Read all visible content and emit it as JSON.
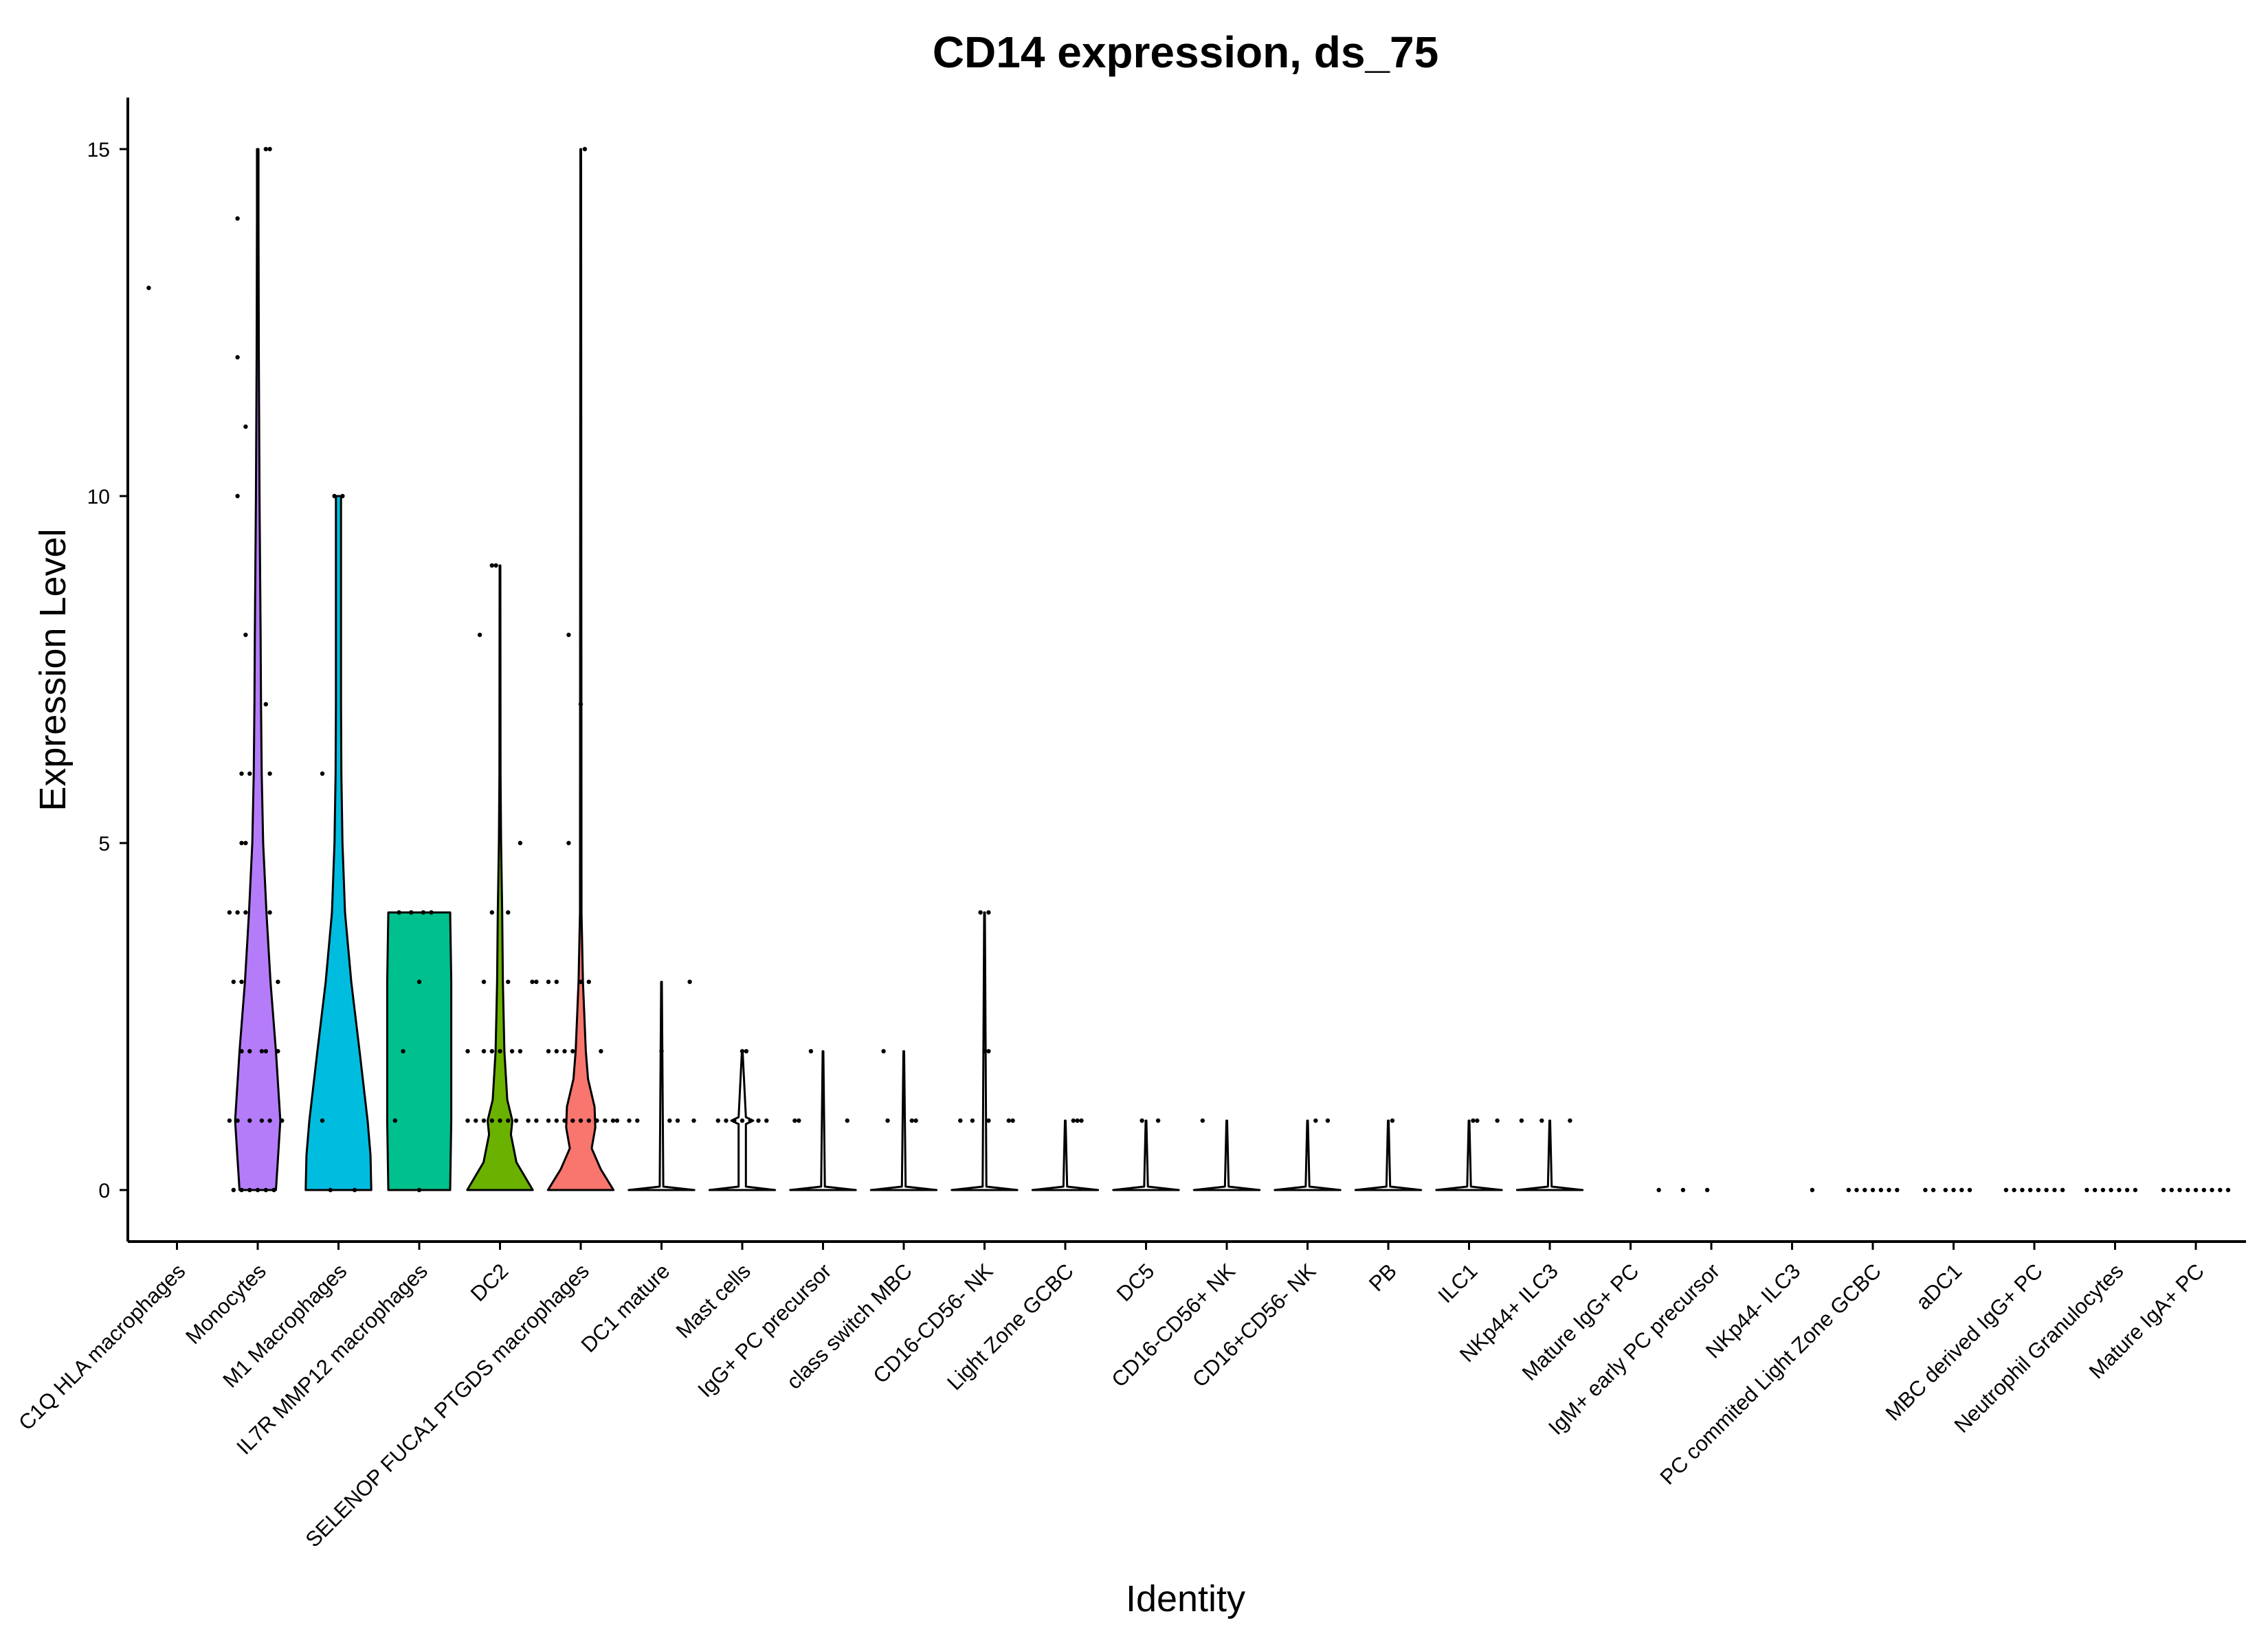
{
  "chart_data": {
    "type": "violin",
    "title": "CD14 expression, ds_75",
    "xlabel": "Identity",
    "ylabel": "Expression Level",
    "ylim": [
      -0.75,
      15.75
    ],
    "yticks": [
      0,
      5,
      10,
      15
    ],
    "grid": false,
    "legend": "none",
    "categories": [
      "C1Q HLA macrophages",
      "Monocytes",
      "M1 Macrophages",
      "IL7R MMP12 macrophages",
      "DC2",
      "SELENOP FUCA1 PTGDS macrophages",
      "DC1 mature",
      "Mast cells",
      "IgG+ PC precursor",
      "class switch MBC",
      "CD16-CD56- NK",
      "Light Zone GCBC",
      "DC5",
      "CD16-CD56+ NK",
      "CD16+CD56- NK",
      "PB",
      "ILC1",
      "NKp44+ ILC3",
      "Mature IgG+ PC",
      "IgM+ early PC precursor",
      "NKp44- ILC3",
      "PC commited Light Zone GCBC",
      "aDC1",
      "MBC derived IgG+ PC",
      "Neutrophil Granulocytes",
      "Mature IgA+ PC"
    ],
    "series": [
      {
        "max": 13,
        "color": "",
        "shape": [],
        "points": [
          [
            13,
            -0.35
          ]
        ]
      },
      {
        "max": 15,
        "color": "#b57cfa",
        "shape": [
          [
            0,
            0.5
          ],
          [
            0.4,
            0.55
          ],
          [
            1,
            0.62
          ],
          [
            2,
            0.5
          ],
          [
            3,
            0.35
          ],
          [
            4,
            0.24
          ],
          [
            5,
            0.15
          ],
          [
            6,
            0.11
          ],
          [
            7,
            0.09
          ],
          [
            8,
            0.08
          ],
          [
            10,
            0.05
          ],
          [
            12,
            0.03
          ],
          [
            14,
            0.02
          ],
          [
            15,
            0.02
          ]
        ],
        "points": [
          [
            15,
            0.15
          ],
          [
            15,
            0.1
          ],
          [
            14,
            -0.25
          ],
          [
            12,
            -0.25
          ],
          [
            11,
            -0.15
          ],
          [
            10,
            -0.25
          ],
          [
            8,
            -0.15
          ],
          [
            7,
            0.1
          ],
          [
            6,
            -0.2
          ],
          [
            6,
            -0.1
          ],
          [
            6,
            0.15
          ],
          [
            5,
            -0.2
          ],
          [
            5,
            -0.15
          ],
          [
            4,
            -0.35
          ],
          [
            4,
            -0.25
          ],
          [
            4,
            -0.15
          ],
          [
            4,
            0.15
          ],
          [
            3,
            -0.3
          ],
          [
            3,
            -0.2
          ],
          [
            3,
            0.25
          ],
          [
            2,
            -0.2
          ],
          [
            2,
            -0.1
          ],
          [
            2,
            0.05
          ],
          [
            2,
            0.1
          ],
          [
            2,
            0.25
          ],
          [
            1,
            -0.35
          ],
          [
            1,
            -0.25
          ],
          [
            1,
            -0.1
          ],
          [
            1,
            0.05
          ],
          [
            1,
            0.15
          ],
          [
            1,
            0.3
          ],
          [
            0,
            -0.3
          ],
          [
            0,
            -0.2
          ],
          [
            0,
            -0.1
          ],
          [
            0,
            0
          ],
          [
            0,
            0.1
          ],
          [
            0,
            0.2
          ]
        ]
      },
      {
        "max": 10,
        "color": "#00bde0",
        "shape": [
          [
            0,
            0.9
          ],
          [
            0.5,
            0.88
          ],
          [
            1,
            0.8
          ],
          [
            2,
            0.58
          ],
          [
            3,
            0.35
          ],
          [
            4,
            0.18
          ],
          [
            5,
            0.11
          ],
          [
            6,
            0.08
          ],
          [
            7,
            0.07
          ],
          [
            8,
            0.07
          ],
          [
            9,
            0.07
          ],
          [
            10,
            0.07
          ]
        ],
        "points": [
          [
            10,
            -0.05
          ],
          [
            10,
            0.05
          ],
          [
            6,
            -0.2
          ],
          [
            1,
            -0.2
          ],
          [
            0,
            -0.1
          ],
          [
            0,
            0.2
          ]
        ]
      },
      {
        "max": 4,
        "color": "#00c08d",
        "shape": [
          [
            0,
            0.85
          ],
          [
            1,
            0.88
          ],
          [
            2,
            0.88
          ],
          [
            3,
            0.88
          ],
          [
            4,
            0.85
          ]
        ],
        "points": [
          [
            4,
            -0.25
          ],
          [
            4,
            -0.1
          ],
          [
            4,
            0.05
          ],
          [
            4,
            0.15
          ],
          [
            3,
            0
          ],
          [
            2,
            -0.2
          ],
          [
            1,
            -0.3
          ],
          [
            0,
            0
          ]
        ]
      },
      {
        "max": 9,
        "color": "#6bb100",
        "shape": [
          [
            0,
            0.9
          ],
          [
            0.4,
            0.45
          ],
          [
            0.8,
            0.3
          ],
          [
            1,
            0.34
          ],
          [
            1.3,
            0.2
          ],
          [
            2,
            0.12
          ],
          [
            3,
            0.08
          ],
          [
            4,
            0.06
          ],
          [
            5,
            0.03
          ],
          [
            6,
            0.015
          ],
          [
            9,
            0.01
          ]
        ],
        "points": [
          [
            9,
            -0.1
          ],
          [
            9,
            -0.05
          ],
          [
            8,
            -0.25
          ],
          [
            5,
            0.25
          ],
          [
            4,
            -0.1
          ],
          [
            4,
            0.1
          ],
          [
            3,
            -0.2
          ],
          [
            3,
            0.1
          ],
          [
            3,
            0.4
          ],
          [
            3,
            0.45
          ],
          [
            2,
            -0.4
          ],
          [
            2,
            -0.2
          ],
          [
            2,
            -0.1
          ],
          [
            2,
            0
          ],
          [
            2,
            0.15
          ],
          [
            2,
            0.25
          ],
          [
            1,
            -0.4
          ],
          [
            1,
            -0.3
          ],
          [
            1,
            -0.2
          ],
          [
            1,
            -0.1
          ],
          [
            1,
            0
          ],
          [
            1,
            0.1
          ],
          [
            1,
            0.2
          ],
          [
            1,
            0.35
          ],
          [
            1,
            0.45
          ]
        ]
      },
      {
        "max": 15,
        "color": "#f8766d",
        "shape": [
          [
            0,
            0.9
          ],
          [
            0.3,
            0.55
          ],
          [
            0.6,
            0.3
          ],
          [
            0.9,
            0.4
          ],
          [
            1.2,
            0.38
          ],
          [
            1.6,
            0.2
          ],
          [
            2,
            0.14
          ],
          [
            3,
            0.06
          ],
          [
            4,
            0.02
          ],
          [
            15,
            0.01
          ]
        ],
        "points": [
          [
            15,
            0.05
          ],
          [
            8,
            -0.15
          ],
          [
            7,
            0
          ],
          [
            5,
            -0.15
          ],
          [
            3,
            -0.4
          ],
          [
            3,
            -0.3
          ],
          [
            3,
            0
          ],
          [
            3,
            0.1
          ],
          [
            2,
            -0.4
          ],
          [
            2,
            -0.3
          ],
          [
            2,
            -0.2
          ],
          [
            2,
            -0.1
          ],
          [
            2,
            0.25
          ],
          [
            1,
            -0.4
          ],
          [
            1,
            -0.3
          ],
          [
            1,
            -0.2
          ],
          [
            1,
            -0.1
          ],
          [
            1,
            0
          ],
          [
            1,
            0.1
          ],
          [
            1,
            0.2
          ],
          [
            1,
            0.3
          ],
          [
            1,
            0.4
          ],
          [
            1,
            0.45
          ]
        ]
      },
      {
        "max": 3,
        "color": "#ffffff",
        "shape": [
          [
            0,
            0.9
          ],
          [
            0.05,
            0.05
          ],
          [
            3,
            0.01
          ]
        ],
        "points": [
          [
            3,
            0.35
          ],
          [
            2,
            0
          ],
          [
            1,
            -0.4
          ],
          [
            1,
            -0.3
          ],
          [
            1,
            0.1
          ],
          [
            1,
            0.2
          ],
          [
            1,
            0.4
          ]
        ]
      },
      {
        "max": 2,
        "color": "#ffffff",
        "shape": [
          [
            0,
            0.9
          ],
          [
            0.05,
            0.1
          ],
          [
            0.95,
            0.1
          ],
          [
            1,
            0.3
          ],
          [
            1.05,
            0.1
          ],
          [
            2,
            0.01
          ]
        ],
        "points": [
          [
            2,
            0
          ],
          [
            2,
            0.05
          ],
          [
            1,
            -0.3
          ],
          [
            1,
            -0.2
          ],
          [
            1,
            -0.1
          ],
          [
            1,
            0
          ],
          [
            1,
            0.1
          ],
          [
            1,
            0.2
          ],
          [
            1,
            0.3
          ]
        ]
      },
      {
        "max": 2,
        "color": "#ffffff",
        "shape": [
          [
            0,
            0.9
          ],
          [
            0.05,
            0.05
          ],
          [
            2,
            0.01
          ]
        ],
        "points": [
          [
            2,
            -0.15
          ],
          [
            1,
            -0.35
          ],
          [
            1,
            -0.3
          ],
          [
            1,
            0.3
          ]
        ]
      },
      {
        "max": 2,
        "color": "#ffffff",
        "shape": [
          [
            0,
            0.9
          ],
          [
            0.05,
            0.05
          ],
          [
            2,
            0.01
          ]
        ],
        "points": [
          [
            2,
            -0.25
          ],
          [
            1,
            -0.2
          ],
          [
            1,
            0.1
          ],
          [
            1,
            0.15
          ]
        ]
      },
      {
        "max": 4,
        "color": "#ffffff",
        "shape": [
          [
            0,
            0.9
          ],
          [
            0.05,
            0.05
          ],
          [
            4,
            0.01
          ]
        ],
        "points": [
          [
            4,
            -0.05
          ],
          [
            4,
            0.05
          ],
          [
            2,
            0
          ],
          [
            2,
            0.05
          ],
          [
            1,
            -0.3
          ],
          [
            1,
            -0.15
          ],
          [
            1,
            0.05
          ],
          [
            1,
            0.3
          ],
          [
            1,
            0.35
          ]
        ]
      },
      {
        "max": 1,
        "color": "#ffffff",
        "shape": [
          [
            0,
            0.9
          ],
          [
            0.05,
            0.05
          ],
          [
            1,
            0.01
          ]
        ],
        "points": [
          [
            1,
            0.1
          ],
          [
            1,
            0.15
          ],
          [
            1,
            0.2
          ]
        ]
      },
      {
        "max": 1,
        "color": "#ffffff",
        "shape": [
          [
            0,
            0.9
          ],
          [
            0.05,
            0.05
          ],
          [
            1,
            0.01
          ]
        ],
        "points": [
          [
            1,
            -0.05
          ],
          [
            1,
            0.15
          ]
        ]
      },
      {
        "max": 1,
        "color": "#ffffff",
        "shape": [
          [
            0,
            0.9
          ],
          [
            0.05,
            0.05
          ],
          [
            1,
            0.01
          ]
        ],
        "points": [
          [
            1,
            -0.3
          ]
        ]
      },
      {
        "max": 1,
        "color": "#ffffff",
        "shape": [
          [
            0,
            0.9
          ],
          [
            0.05,
            0.05
          ],
          [
            1,
            0.01
          ]
        ],
        "points": [
          [
            1,
            0.1
          ],
          [
            1,
            0.25
          ]
        ]
      },
      {
        "max": 1,
        "color": "#ffffff",
        "shape": [
          [
            0,
            0.9
          ],
          [
            0.05,
            0.05
          ],
          [
            1,
            0.01
          ]
        ],
        "points": [
          [
            1,
            0.05
          ]
        ]
      },
      {
        "max": 1,
        "color": "#ffffff",
        "shape": [
          [
            0,
            0.9
          ],
          [
            0.05,
            0.05
          ],
          [
            1,
            0.01
          ]
        ],
        "points": [
          [
            1,
            0.05
          ],
          [
            1,
            0.1
          ],
          [
            1,
            0.35
          ]
        ]
      },
      {
        "max": 1,
        "color": "#ffffff",
        "shape": [
          [
            0,
            0.9
          ],
          [
            0.05,
            0.05
          ],
          [
            1,
            0.01
          ]
        ],
        "points": [
          [
            1,
            -0.35
          ],
          [
            1,
            -0.1
          ],
          [
            1,
            0.25
          ]
        ]
      },
      {
        "max": 0,
        "color": "",
        "shape": [],
        "points": [
          [
            0,
            0.35
          ]
        ]
      },
      {
        "max": 0,
        "color": "",
        "shape": [],
        "points": [
          [
            0,
            -0.35
          ],
          [
            0,
            -0.05
          ]
        ]
      },
      {
        "max": 0,
        "color": "",
        "shape": [],
        "points": [
          [
            0,
            0.25
          ]
        ]
      },
      {
        "max": 0,
        "color": "",
        "shape": [],
        "points": [
          [
            0,
            -0.3
          ],
          [
            0,
            -0.2
          ],
          [
            0,
            -0.1
          ],
          [
            0,
            0
          ],
          [
            0,
            0.1
          ],
          [
            0,
            0.2
          ],
          [
            0,
            0.3
          ]
        ]
      },
      {
        "max": 0,
        "color": "",
        "shape": [],
        "points": [
          [
            0,
            -0.35
          ],
          [
            0,
            -0.25
          ],
          [
            0,
            -0.1
          ],
          [
            0,
            0
          ],
          [
            0,
            0.1
          ],
          [
            0,
            0.2
          ]
        ]
      },
      {
        "max": 0,
        "color": "",
        "shape": [],
        "points": [
          [
            0,
            -0.35
          ],
          [
            0,
            -0.25
          ],
          [
            0,
            -0.15
          ],
          [
            0,
            -0.05
          ],
          [
            0,
            0.05
          ],
          [
            0,
            0.15
          ],
          [
            0,
            0.25
          ],
          [
            0,
            0.35
          ]
        ]
      },
      {
        "max": 0,
        "color": "",
        "shape": [],
        "points": [
          [
            0,
            -0.35
          ],
          [
            0,
            -0.25
          ],
          [
            0,
            -0.15
          ],
          [
            0,
            -0.05
          ],
          [
            0,
            0.05
          ],
          [
            0,
            0.15
          ],
          [
            0,
            0.25
          ]
        ]
      },
      {
        "max": 0,
        "color": "",
        "shape": [],
        "points": [
          [
            0,
            -0.4
          ],
          [
            0,
            -0.3
          ],
          [
            0,
            -0.2
          ],
          [
            0,
            -0.1
          ],
          [
            0,
            0
          ],
          [
            0,
            0.1
          ],
          [
            0,
            0.2
          ],
          [
            0,
            0.3
          ],
          [
            0,
            0.4
          ]
        ]
      }
    ]
  }
}
